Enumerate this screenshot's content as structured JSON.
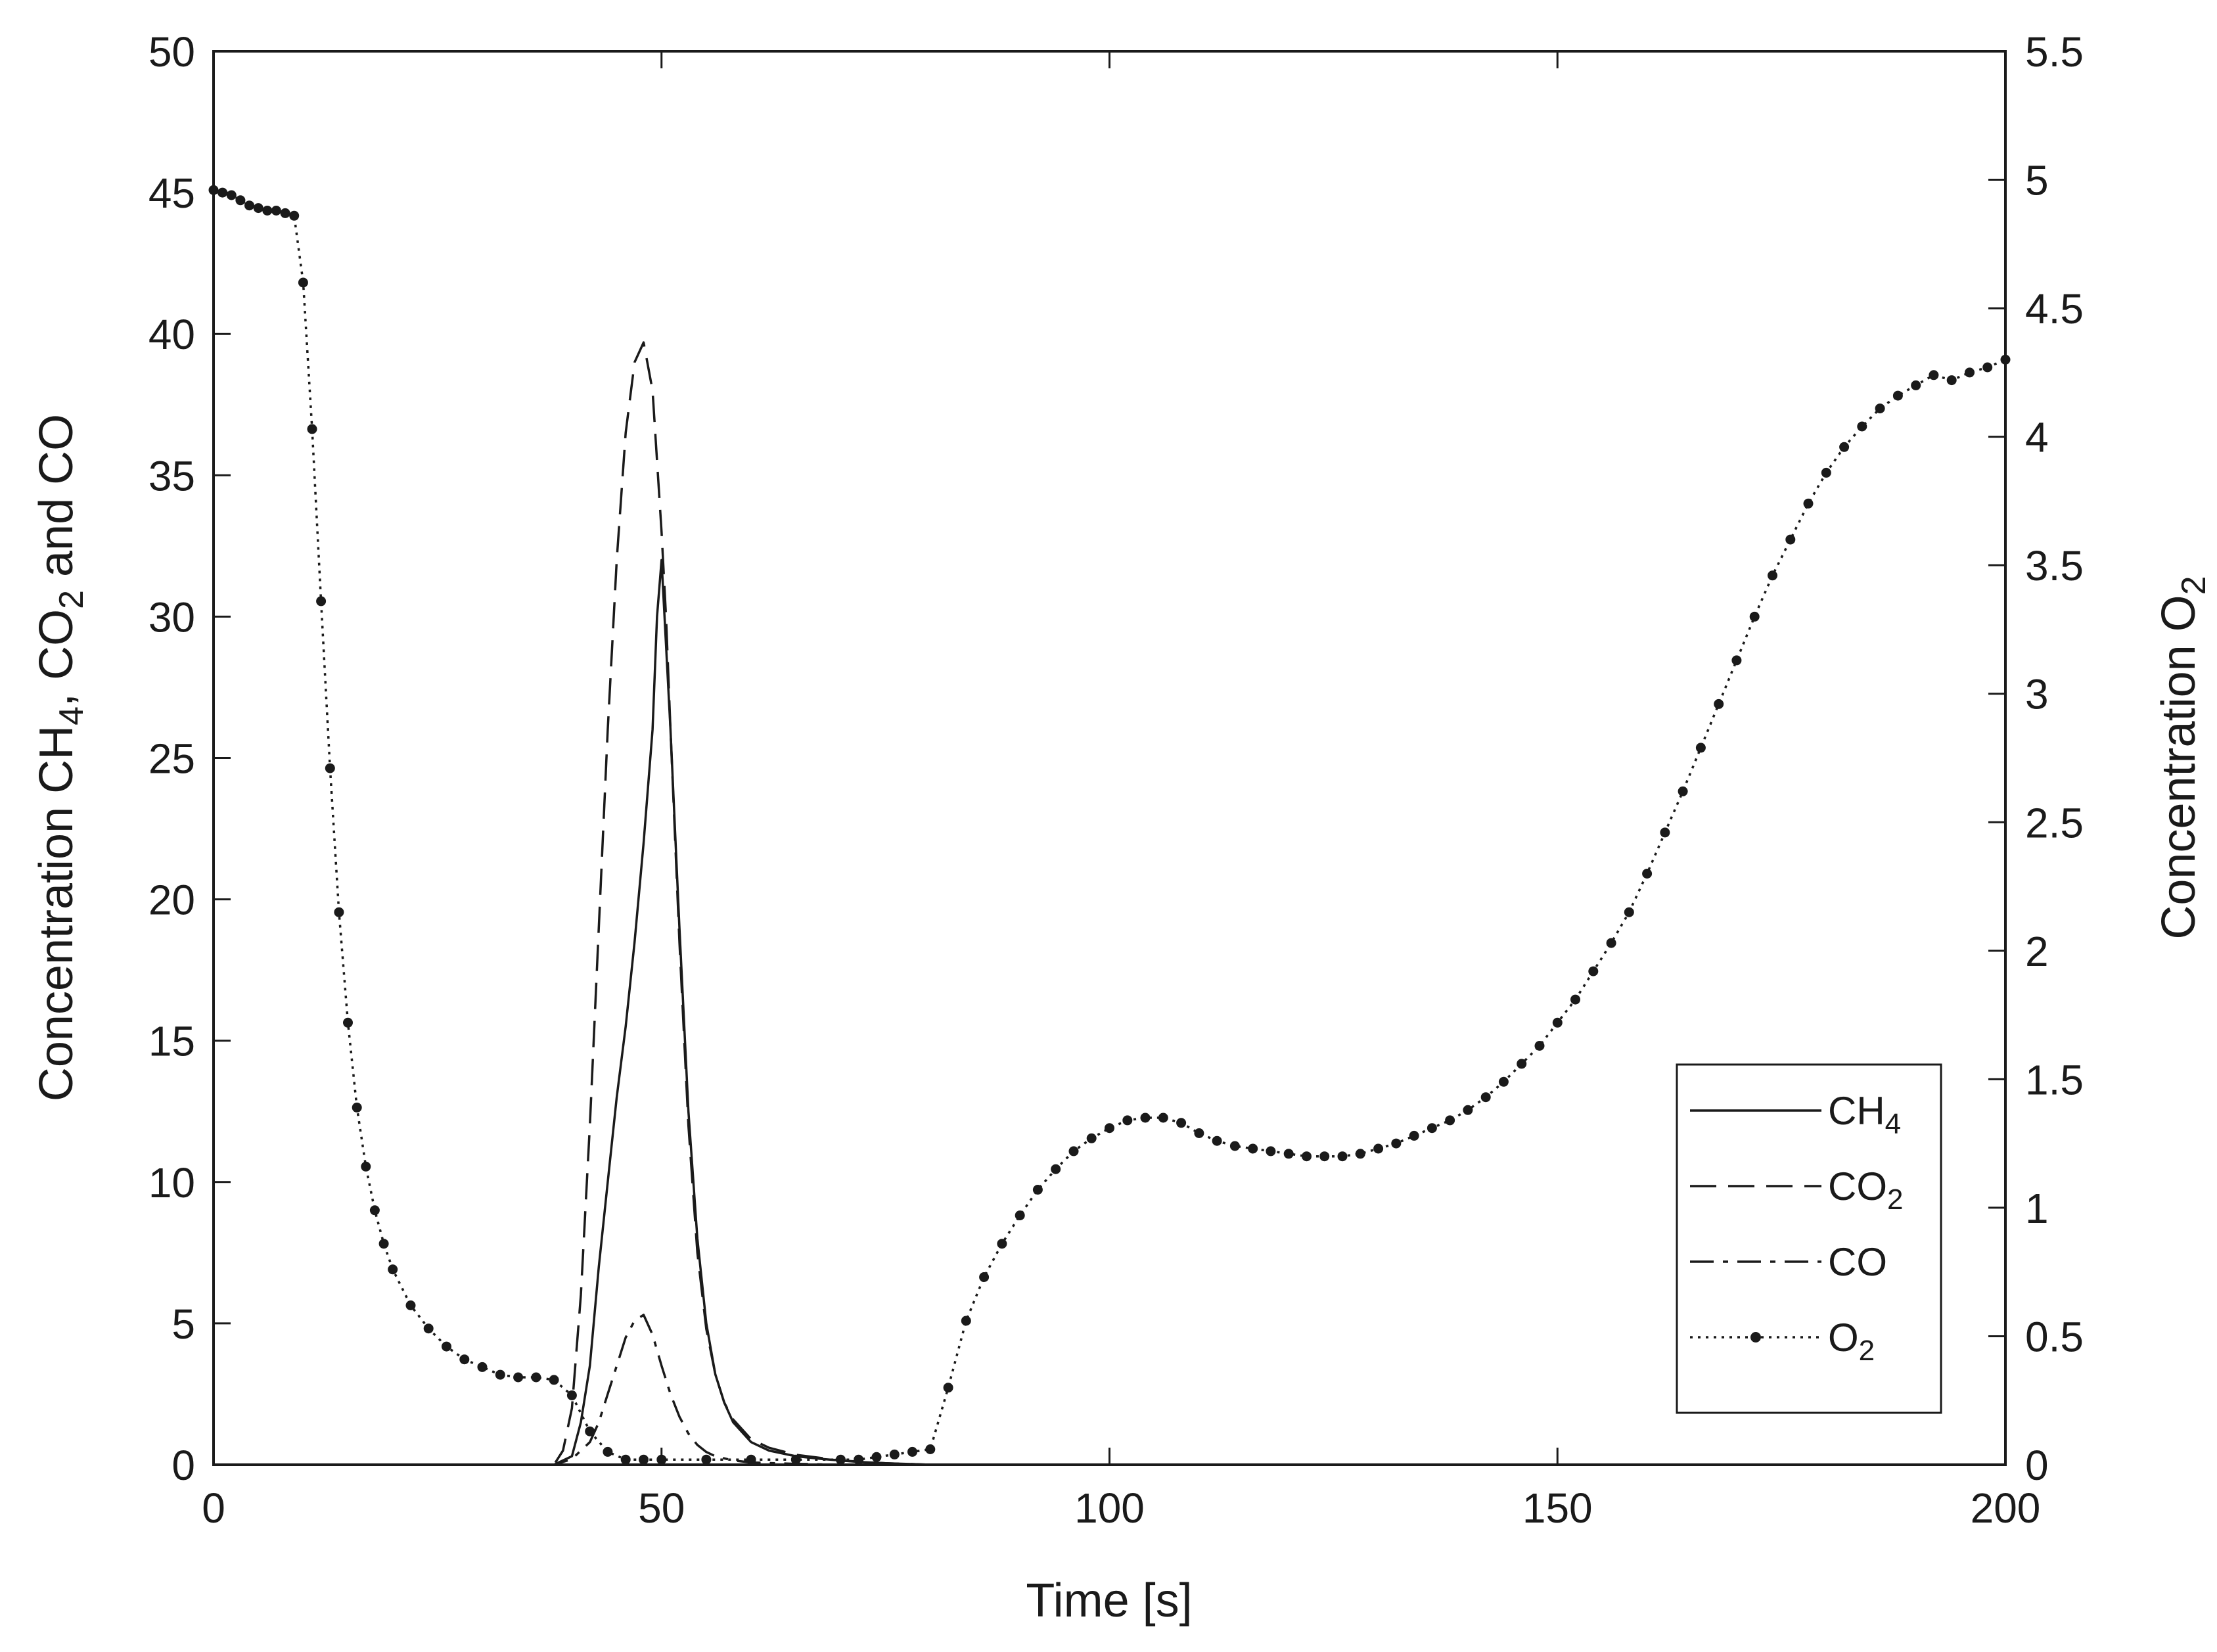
{
  "chart_data": {
    "type": "line",
    "title": "",
    "xlabel": "Time [s]",
    "ylabel_left": {
      "text": "Concentration CH",
      "sub1": "4",
      "mid": ", CO",
      "sub2": "2",
      "end": " and CO"
    },
    "ylabel_right": {
      "text": "Concentration O",
      "sub": "2"
    },
    "xlim": [
      0,
      200
    ],
    "ylim_left": [
      0,
      50
    ],
    "ylim_right": [
      0,
      5.5
    ],
    "x_ticks": [
      0,
      50,
      100,
      150,
      200
    ],
    "x_tick_labels": [
      "0",
      "50",
      "100",
      "150",
      "200"
    ],
    "y_left_ticks": [
      0,
      5,
      10,
      15,
      20,
      25,
      30,
      35,
      40,
      45,
      50
    ],
    "y_left_tick_labels": [
      "0",
      "5",
      "10",
      "15",
      "20",
      "25",
      "30",
      "35",
      "40",
      "45",
      "50"
    ],
    "y_right_ticks": [
      0,
      0.5,
      1,
      1.5,
      2,
      2.5,
      3,
      3.5,
      4,
      4.5,
      5,
      5.5
    ],
    "y_right_tick_labels": [
      "0",
      "0.5",
      "1",
      "1.5",
      "2",
      "2.5",
      "3",
      "3.5",
      "4",
      "4.5",
      "5",
      "5.5"
    ],
    "grid": false,
    "legend_position": "bottom-right",
    "series": [
      {
        "name": "CH4",
        "legend_base": "CH",
        "legend_sub": "4",
        "axis": "left",
        "style": "solid",
        "x": [
          0,
          38,
          40,
          41,
          42,
          43,
          44,
          45,
          46,
          47,
          48,
          49,
          49.5,
          50,
          50.5,
          51,
          52,
          53,
          54,
          55,
          56,
          57,
          58,
          60,
          62,
          65,
          68,
          70,
          72,
          75,
          80,
          200
        ],
        "y": [
          0,
          0,
          0.3,
          1.5,
          3.5,
          7,
          10,
          13,
          15.5,
          18.5,
          22,
          26,
          30,
          32,
          29,
          26,
          19,
          12.5,
          8,
          5,
          3.2,
          2.2,
          1.5,
          0.8,
          0.5,
          0.3,
          0.2,
          0.15,
          0.1,
          0.05,
          0,
          0
        ]
      },
      {
        "name": "CO2",
        "legend_base": "CO",
        "legend_sub": "2",
        "axis": "left",
        "style": "dashed",
        "x": [
          0,
          38,
          39,
          40,
          41,
          42,
          43,
          44,
          45,
          46,
          47,
          48,
          49,
          50,
          50.5,
          51,
          52,
          53,
          54,
          55,
          56,
          57,
          58,
          60,
          62,
          65,
          70,
          75,
          80,
          200
        ],
        "y": [
          0,
          0,
          0.5,
          2,
          6,
          12,
          19,
          26,
          32,
          36.5,
          39,
          39.7,
          38,
          33,
          30,
          26,
          18.5,
          12,
          7.5,
          4.8,
          3.2,
          2.2,
          1.6,
          0.9,
          0.6,
          0.35,
          0.15,
          0.05,
          0,
          0
        ]
      },
      {
        "name": "CO",
        "legend_base": "CO",
        "legend_sub": "",
        "axis": "left",
        "style": "dashdot",
        "x": [
          0,
          38,
          40,
          42,
          43,
          44,
          45,
          46,
          47,
          48,
          49,
          50,
          51,
          52,
          53,
          54,
          55,
          56,
          58,
          60,
          65,
          70,
          200
        ],
        "y": [
          0,
          0,
          0.2,
          0.8,
          1.5,
          2.5,
          3.5,
          4.5,
          5.1,
          5.3,
          4.6,
          3.5,
          2.5,
          1.7,
          1.1,
          0.7,
          0.45,
          0.3,
          0.15,
          0.08,
          0.03,
          0,
          0
        ]
      },
      {
        "name": "O2",
        "legend_base": "O",
        "legend_sub": "2",
        "axis": "right",
        "style": "dotted-markers",
        "x": [
          0,
          1,
          2,
          3,
          4,
          5,
          6,
          7,
          8,
          9,
          10,
          11,
          12,
          13,
          14,
          15,
          16,
          17,
          18,
          19,
          20,
          22,
          24,
          26,
          28,
          30,
          32,
          34,
          36,
          38,
          40,
          42,
          44,
          46,
          48,
          50,
          55,
          60,
          65,
          70,
          72,
          74,
          76,
          78,
          80,
          82,
          84,
          86,
          88,
          90,
          92,
          94,
          96,
          98,
          100,
          102,
          104,
          106,
          108,
          110,
          112,
          114,
          116,
          118,
          120,
          122,
          124,
          126,
          128,
          130,
          132,
          134,
          136,
          138,
          140,
          142,
          144,
          146,
          148,
          150,
          152,
          154,
          156,
          158,
          160,
          162,
          164,
          166,
          168,
          170,
          172,
          174,
          176,
          178,
          180,
          182,
          184,
          186,
          188,
          190,
          192,
          194,
          196,
          198,
          200
        ],
        "y": [
          4.96,
          4.95,
          4.94,
          4.92,
          4.9,
          4.89,
          4.88,
          4.88,
          4.87,
          4.86,
          4.6,
          4.03,
          3.36,
          2.71,
          2.15,
          1.72,
          1.39,
          1.16,
          0.99,
          0.86,
          0.76,
          0.62,
          0.53,
          0.46,
          0.41,
          0.38,
          0.35,
          0.34,
          0.34,
          0.33,
          0.27,
          0.13,
          0.05,
          0.02,
          0.02,
          0.02,
          0.02,
          0.02,
          0.02,
          0.02,
          0.02,
          0.03,
          0.04,
          0.05,
          0.06,
          0.3,
          0.56,
          0.73,
          0.86,
          0.97,
          1.07,
          1.15,
          1.22,
          1.27,
          1.31,
          1.34,
          1.35,
          1.35,
          1.33,
          1.29,
          1.26,
          1.24,
          1.23,
          1.22,
          1.21,
          1.2,
          1.2,
          1.2,
          1.21,
          1.23,
          1.25,
          1.28,
          1.31,
          1.34,
          1.38,
          1.43,
          1.49,
          1.56,
          1.63,
          1.72,
          1.81,
          1.92,
          2.03,
          2.15,
          2.3,
          2.46,
          2.62,
          2.79,
          2.96,
          3.13,
          3.3,
          3.46,
          3.6,
          3.74,
          3.86,
          3.96,
          4.04,
          4.11,
          4.16,
          4.2,
          4.24,
          4.22,
          4.25,
          4.27,
          4.3
        ]
      }
    ]
  }
}
